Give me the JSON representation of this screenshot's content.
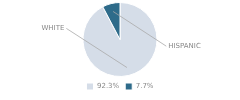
{
  "chart_data": {
    "type": "pie",
    "categories": [
      "WHITE",
      "HISPANIC"
    ],
    "values": [
      92.3,
      7.7
    ],
    "value_labels": [
      "92.3%",
      "7.7%"
    ],
    "colors": [
      "#d5dde8",
      "#2e6b8a"
    ],
    "legend": "bottom"
  }
}
